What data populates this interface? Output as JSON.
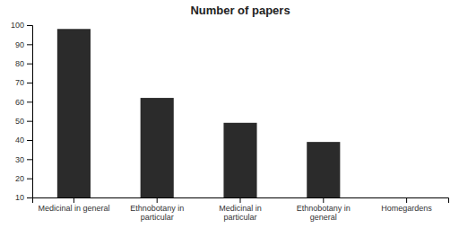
{
  "chart_data": {
    "type": "bar",
    "title": "Number of papers",
    "categories": [
      "Medicinal in general",
      "Ethnobotany in\nparticular",
      "Medicinal in\nparticular",
      "Ethnobotany in\ngeneral",
      "Homegardens"
    ],
    "values": [
      98,
      62,
      49,
      39,
      10
    ],
    "color": "#2b2b2b",
    "ylim": [
      10,
      100
    ],
    "yticks": [
      10,
      20,
      30,
      40,
      50,
      60,
      70,
      80,
      90,
      100
    ],
    "grid": false
  }
}
